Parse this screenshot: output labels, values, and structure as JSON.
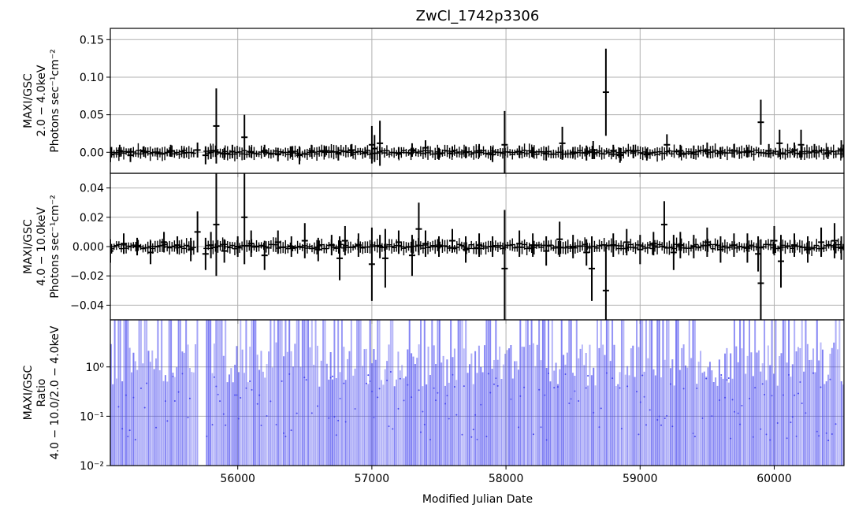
{
  "chart_data": {
    "type": "errorbar",
    "title": "ZwCl_1742p3306",
    "xlabel": "Modified Julian Date",
    "x_ticks": [
      56000,
      57000,
      58000,
      59000,
      60000
    ],
    "xlim": [
      55050,
      60520
    ],
    "grid": true,
    "panels": [
      {
        "id": "soft",
        "ylabel_lines": [
          "MAXI/GSC",
          "2.0 − 4.0keV",
          "Photons sec⁻¹cm⁻²"
        ],
        "y_scale": "linear",
        "ylim": [
          -0.028,
          0.165
        ],
        "y_ticks": [
          0.0,
          0.05,
          0.1,
          0.15
        ],
        "y_tick_labels": [
          "0.00",
          "0.05",
          "0.10",
          "0.15"
        ],
        "color": "#000000",
        "series": {
          "x": [
            55050,
            55120,
            55200,
            55300,
            55400,
            55500,
            55600,
            55700,
            55760,
            55800,
            55840,
            55900,
            55960,
            56050,
            56100,
            56200,
            56300,
            56400,
            56460,
            56550,
            56650,
            56750,
            56850,
            56950,
            57000,
            57020,
            57060,
            57200,
            57300,
            57400,
            57500,
            57600,
            57700,
            57800,
            57900,
            57990,
            58100,
            58200,
            58300,
            58420,
            58500,
            58600,
            58650,
            58745,
            58800,
            58850,
            58950,
            59050,
            59200,
            59300,
            59400,
            59500,
            59600,
            59700,
            59800,
            59900,
            59960,
            60040,
            60150,
            60200,
            60300,
            60400,
            60500
          ],
          "y": [
            -0.003,
            0.002,
            -0.004,
            0.001,
            0.0,
            0.002,
            -0.001,
            0.003,
            -0.004,
            0.0,
            0.035,
            -0.002,
            0.001,
            0.02,
            0.0,
            0.002,
            -0.003,
            0.001,
            -0.004,
            0.002,
            0.001,
            -0.002,
            0.003,
            0.0,
            0.01,
            0.005,
            0.012,
            -0.001,
            0.003,
            0.006,
            -0.002,
            0.001,
            0.0,
            0.002,
            -0.003,
            0.01,
            0.001,
            0.0,
            -0.002,
            0.012,
            0.0,
            -0.001,
            0.003,
            0.08,
            0.002,
            -0.004,
            0.001,
            -0.003,
            0.01,
            0.002,
            0.0,
            0.003,
            -0.001,
            0.002,
            0.0,
            0.04,
            0.002,
            0.012,
            0.003,
            0.01,
            0.002,
            -0.001,
            0.004
          ],
          "err": [
            0.01,
            0.008,
            0.009,
            0.007,
            0.006,
            0.008,
            0.007,
            0.01,
            0.012,
            0.009,
            0.05,
            0.008,
            0.009,
            0.03,
            0.007,
            0.008,
            0.009,
            0.007,
            0.012,
            0.008,
            0.007,
            0.009,
            0.008,
            0.007,
            0.025,
            0.018,
            0.03,
            0.008,
            0.009,
            0.01,
            0.008,
            0.007,
            0.008,
            0.009,
            0.01,
            0.045,
            0.008,
            0.007,
            0.009,
            0.022,
            0.007,
            0.01,
            0.012,
            0.058,
            0.008,
            0.01,
            0.009,
            0.008,
            0.014,
            0.008,
            0.009,
            0.01,
            0.008,
            0.009,
            0.007,
            0.03,
            0.009,
            0.018,
            0.01,
            0.02,
            0.009,
            0.008,
            0.012
          ]
        }
      },
      {
        "id": "hard",
        "ylabel_lines": [
          "MAXI/GSC",
          "4.0 − 10.0keV",
          "Photons sec⁻¹cm⁻²"
        ],
        "y_scale": "linear",
        "ylim": [
          -0.05,
          0.05
        ],
        "y_ticks": [
          -0.04,
          -0.02,
          0.0,
          0.02,
          0.04
        ],
        "y_tick_labels": [
          "−0.04",
          "−0.02",
          "0.000",
          "0.02",
          "0.04"
        ],
        "color": "#000000",
        "series": {
          "x": [
            55050,
            55150,
            55250,
            55350,
            55450,
            55550,
            55650,
            55700,
            55760,
            55800,
            55840,
            55900,
            56000,
            56050,
            56100,
            56200,
            56300,
            56400,
            56500,
            56600,
            56700,
            56760,
            56800,
            56900,
            57000,
            57060,
            57100,
            57200,
            57300,
            57350,
            57400,
            57500,
            57600,
            57700,
            57800,
            57900,
            57990,
            58100,
            58200,
            58300,
            58400,
            58500,
            58600,
            58640,
            58745,
            58800,
            58900,
            59000,
            59100,
            59180,
            59250,
            59300,
            59400,
            59500,
            59600,
            59700,
            59800,
            59880,
            59900,
            60000,
            60050,
            60150,
            60250,
            60350,
            60450,
            60500
          ],
          "y": [
            -0.003,
            0.002,
            0.0,
            -0.004,
            0.003,
            0.001,
            -0.002,
            0.01,
            -0.005,
            0.001,
            0.015,
            -0.003,
            0.0,
            0.02,
            0.002,
            -0.006,
            0.003,
            0.0,
            0.004,
            -0.002,
            0.001,
            -0.008,
            0.004,
            0.001,
            -0.012,
            0.0,
            -0.008,
            0.003,
            -0.006,
            0.012,
            0.002,
            0.0,
            0.004,
            -0.002,
            0.001,
            0.0,
            -0.015,
            0.002,
            0.001,
            -0.003,
            0.005,
            0.0,
            -0.004,
            -0.015,
            -0.03,
            0.001,
            0.003,
            -0.002,
            0.002,
            0.015,
            -0.004,
            0.001,
            0.0,
            0.003,
            -0.002,
            0.001,
            -0.001,
            -0.005,
            -0.025,
            0.004,
            -0.01,
            0.001,
            -0.002,
            0.003,
            0.004,
            -0.001
          ],
          "err": [
            0.008,
            0.007,
            0.006,
            0.008,
            0.007,
            0.006,
            0.008,
            0.014,
            0.011,
            0.009,
            0.035,
            0.008,
            0.007,
            0.032,
            0.009,
            0.01,
            0.008,
            0.007,
            0.012,
            0.008,
            0.007,
            0.015,
            0.01,
            0.008,
            0.025,
            0.008,
            0.02,
            0.008,
            0.014,
            0.018,
            0.009,
            0.007,
            0.008,
            0.009,
            0.008,
            0.007,
            0.04,
            0.009,
            0.008,
            0.01,
            0.012,
            0.008,
            0.009,
            0.022,
            0.03,
            0.008,
            0.009,
            0.01,
            0.008,
            0.016,
            0.012,
            0.009,
            0.008,
            0.01,
            0.009,
            0.008,
            0.01,
            0.012,
            0.03,
            0.01,
            0.018,
            0.008,
            0.009,
            0.01,
            0.012,
            0.008
          ]
        }
      },
      {
        "id": "ratio",
        "ylabel_lines": [
          "MAXI/GSC",
          "Ratio",
          "4.0 − 10.0/2.0 − 4.0keV"
        ],
        "y_scale": "log",
        "ylim": [
          0.01,
          9.0
        ],
        "y_ticks": [
          0.01,
          0.1,
          1.0
        ],
        "y_tick_labels": [
          "10⁻²",
          "10⁻¹",
          "10⁰"
        ],
        "color": "#4444ee"
      }
    ]
  }
}
